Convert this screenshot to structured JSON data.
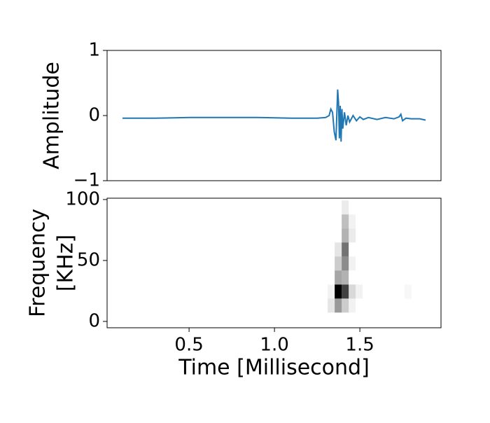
{
  "chart_data": [
    {
      "type": "line",
      "ylabel": "Amplitude",
      "xlim": [
        0.02,
        1.975
      ],
      "ylim": [
        -1,
        1
      ],
      "yticks": [
        {
          "value": -1,
          "label": "−1"
        },
        0,
        1
      ],
      "series": [
        {
          "color": "#1f77b4",
          "x": [
            0.11,
            0.3,
            0.5,
            0.7,
            0.9,
            1.1,
            1.25,
            1.3,
            1.32,
            1.33,
            1.34,
            1.35,
            1.36,
            1.37,
            1.375,
            1.38,
            1.385,
            1.39,
            1.395,
            1.4,
            1.41,
            1.42,
            1.43,
            1.44,
            1.46,
            1.48,
            1.5,
            1.52,
            1.55,
            1.6,
            1.65,
            1.7,
            1.73,
            1.74,
            1.75,
            1.77,
            1.8,
            1.85,
            1.885
          ],
          "values": [
            -0.04,
            -0.04,
            -0.03,
            -0.03,
            -0.03,
            -0.04,
            -0.04,
            -0.03,
            0.0,
            0.1,
            0.05,
            -0.25,
            -0.38,
            0.4,
            0.2,
            -0.35,
            0.15,
            -0.4,
            0.1,
            -0.2,
            0.05,
            -0.15,
            0.0,
            -0.1,
            0.0,
            -0.08,
            -0.02,
            -0.06,
            -0.03,
            -0.06,
            -0.03,
            -0.05,
            -0.02,
            0.02,
            -0.08,
            -0.04,
            -0.05,
            -0.05,
            -0.07
          ]
        }
      ]
    },
    {
      "type": "heatmap",
      "xlabel": "Time [Millisecond]",
      "ylabel": [
        "Frequency",
        "[KHz]"
      ],
      "xlim": [
        0.02,
        1.975
      ],
      "ylim": [
        -5.2,
        101.1
      ],
      "xticks": [
        0.5,
        {
          "value": 1,
          "label": "1.0"
        },
        1.5
      ],
      "yticks": [
        0,
        50,
        100
      ],
      "color": "#000000",
      "x": [
        1.332,
        1.332,
        1.373,
        1.373,
        1.373,
        1.373,
        1.373,
        1.414,
        1.414,
        1.414,
        1.414,
        1.414,
        1.414,
        1.414,
        1.414,
        1.455,
        1.455,
        1.455,
        1.455,
        1.455,
        1.496,
        1.783
      ],
      "y": [
        13,
        24.5,
        13,
        24.5,
        36,
        47.5,
        59,
        13,
        24.5,
        36,
        47.5,
        59,
        70.5,
        82,
        93.5,
        13,
        24.5,
        47.5,
        70.5,
        82,
        24.5,
        24.5
      ],
      "values": [
        0.1,
        0.05,
        0.4,
        1.0,
        0.35,
        0.2,
        0.1,
        0.2,
        0.75,
        0.3,
        0.45,
        0.55,
        0.3,
        0.25,
        0.08,
        0.05,
        0.15,
        0.05,
        0.08,
        0.05,
        0.05,
        0.03
      ]
    }
  ]
}
